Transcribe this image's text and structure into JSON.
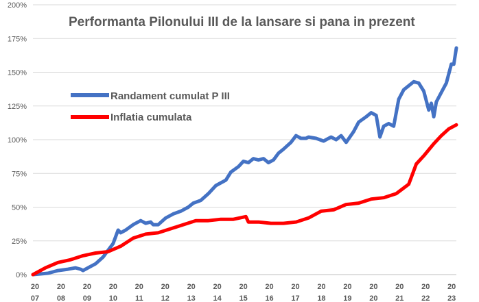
{
  "chart_data": {
    "type": "line",
    "title": "Performanta Pilonului III de la lansare si pana in prezent",
    "xlabel": "",
    "ylabel": "",
    "ylim": [
      0,
      200
    ],
    "y_ticks": [
      "0%",
      "25%",
      "50%",
      "75%",
      "100%",
      "125%",
      "150%",
      "175%",
      "200%"
    ],
    "x_ticks": [
      [
        "20",
        "07"
      ],
      [
        "20",
        "08"
      ],
      [
        "20",
        "09"
      ],
      [
        "20",
        "10"
      ],
      [
        "20",
        "11"
      ],
      [
        "20",
        "12"
      ],
      [
        "20",
        "13"
      ],
      [
        "20",
        "14"
      ],
      [
        "20",
        "15"
      ],
      [
        "20",
        "16"
      ],
      [
        "20",
        "17"
      ],
      [
        "20",
        "18"
      ],
      [
        "20",
        "19"
      ],
      [
        "20",
        "20"
      ],
      [
        "20",
        "21"
      ],
      [
        "20",
        "22"
      ],
      [
        "20",
        "23"
      ]
    ],
    "x_range": [
      2007.0,
      2023.9
    ],
    "grid": true,
    "legend_position": "upper-left",
    "series": [
      {
        "name": "Randament cumulat P III",
        "color": "#4472C4",
        "points": [
          [
            2007.0,
            0
          ],
          [
            2007.3,
            0.5
          ],
          [
            2007.6,
            1
          ],
          [
            2008.0,
            3
          ],
          [
            2008.4,
            4
          ],
          [
            2008.7,
            5
          ],
          [
            2008.9,
            4
          ],
          [
            2009.0,
            3
          ],
          [
            2009.2,
            5
          ],
          [
            2009.5,
            8
          ],
          [
            2009.8,
            13
          ],
          [
            2010.0,
            18
          ],
          [
            2010.2,
            23
          ],
          [
            2010.4,
            33
          ],
          [
            2010.5,
            31
          ],
          [
            2010.7,
            33
          ],
          [
            2011.0,
            37
          ],
          [
            2011.3,
            40
          ],
          [
            2011.5,
            38
          ],
          [
            2011.7,
            39
          ],
          [
            2011.8,
            37
          ],
          [
            2012.0,
            37
          ],
          [
            2012.3,
            42
          ],
          [
            2012.6,
            45
          ],
          [
            2012.9,
            47
          ],
          [
            2013.2,
            50
          ],
          [
            2013.4,
            53
          ],
          [
            2013.7,
            55
          ],
          [
            2014.0,
            60
          ],
          [
            2014.3,
            66
          ],
          [
            2014.5,
            68
          ],
          [
            2014.7,
            70
          ],
          [
            2014.9,
            76
          ],
          [
            2015.2,
            80
          ],
          [
            2015.4,
            84
          ],
          [
            2015.6,
            83
          ],
          [
            2015.8,
            86
          ],
          [
            2016.0,
            85
          ],
          [
            2016.2,
            86
          ],
          [
            2016.4,
            83
          ],
          [
            2016.6,
            85
          ],
          [
            2016.8,
            90
          ],
          [
            2017.0,
            93
          ],
          [
            2017.3,
            98
          ],
          [
            2017.5,
            103
          ],
          [
            2017.7,
            101
          ],
          [
            2017.9,
            101
          ],
          [
            2018.0,
            102
          ],
          [
            2018.3,
            101
          ],
          [
            2018.6,
            99
          ],
          [
            2018.9,
            102
          ],
          [
            2019.1,
            100
          ],
          [
            2019.3,
            103
          ],
          [
            2019.5,
            98
          ],
          [
            2019.8,
            106
          ],
          [
            2020.0,
            113
          ],
          [
            2020.3,
            117
          ],
          [
            2020.5,
            120
          ],
          [
            2020.7,
            118
          ],
          [
            2020.85,
            102
          ],
          [
            2021.0,
            110
          ],
          [
            2021.2,
            112
          ],
          [
            2021.4,
            110
          ],
          [
            2021.6,
            130
          ],
          [
            2021.8,
            137
          ],
          [
            2022.0,
            140
          ],
          [
            2022.2,
            143
          ],
          [
            2022.4,
            142
          ],
          [
            2022.6,
            136
          ],
          [
            2022.8,
            122
          ],
          [
            2022.9,
            127
          ],
          [
            2023.0,
            117
          ],
          [
            2023.1,
            128
          ],
          [
            2023.3,
            135
          ],
          [
            2023.5,
            142
          ],
          [
            2023.7,
            156
          ],
          [
            2023.8,
            156
          ],
          [
            2023.9,
            168
          ]
        ]
      },
      {
        "name": "Inflatia cumulata",
        "color": "#FF0000",
        "points": [
          [
            2007.0,
            0
          ],
          [
            2007.5,
            5
          ],
          [
            2008.0,
            9
          ],
          [
            2008.5,
            11
          ],
          [
            2009.0,
            14
          ],
          [
            2009.5,
            16
          ],
          [
            2010.0,
            17
          ],
          [
            2010.5,
            21
          ],
          [
            2011.0,
            27
          ],
          [
            2011.5,
            30
          ],
          [
            2012.0,
            31
          ],
          [
            2012.5,
            34
          ],
          [
            2013.0,
            37
          ],
          [
            2013.5,
            40
          ],
          [
            2014.0,
            40
          ],
          [
            2014.5,
            41
          ],
          [
            2015.0,
            41
          ],
          [
            2015.5,
            43
          ],
          [
            2015.6,
            39
          ],
          [
            2016.0,
            39
          ],
          [
            2016.5,
            38
          ],
          [
            2017.0,
            38
          ],
          [
            2017.5,
            39
          ],
          [
            2018.0,
            42
          ],
          [
            2018.5,
            47
          ],
          [
            2019.0,
            48
          ],
          [
            2019.5,
            52
          ],
          [
            2020.0,
            53
          ],
          [
            2020.5,
            56
          ],
          [
            2021.0,
            57
          ],
          [
            2021.5,
            60
          ],
          [
            2022.0,
            67
          ],
          [
            2022.3,
            82
          ],
          [
            2022.6,
            88
          ],
          [
            2023.0,
            97
          ],
          [
            2023.3,
            103
          ],
          [
            2023.6,
            108
          ],
          [
            2023.9,
            111
          ]
        ]
      }
    ]
  }
}
